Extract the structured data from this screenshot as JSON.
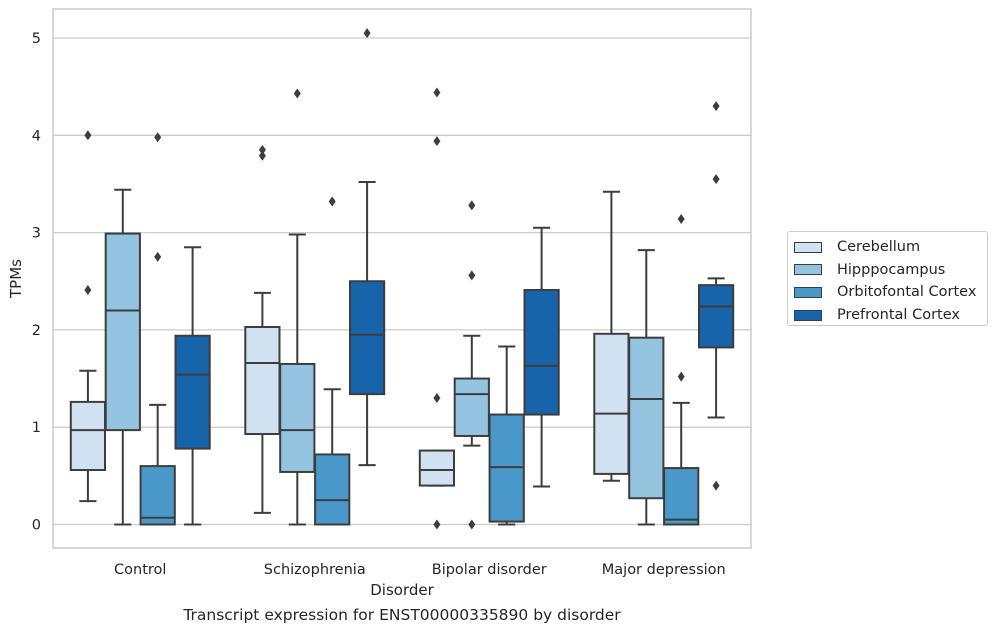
{
  "caption": "Transcript expression for ENST00000335890 by disorder",
  "chart_data": {
    "type": "box",
    "xlabel": "Disorder",
    "ylabel": "TPMs",
    "ylim": [
      -0.25,
      5.3
    ],
    "yticks": [
      0,
      1,
      2,
      3,
      4,
      5
    ],
    "grid": "horizontal",
    "legend_position": "right",
    "categories": [
      "Control",
      "Schizophrenia",
      "Bipolar disorder",
      "Major depression"
    ],
    "series": [
      {
        "name": "Cerebellum",
        "color": "#d0e1f2",
        "boxes": [
          {
            "whislo": 0.24,
            "q1": 0.56,
            "med": 0.97,
            "q3": 1.26,
            "whishi": 1.58,
            "fliers": [
              2.41,
              4.0
            ]
          },
          {
            "whislo": 0.12,
            "q1": 0.93,
            "med": 1.66,
            "q3": 2.03,
            "whishi": 2.38,
            "fliers": [
              3.79,
              3.85
            ]
          },
          {
            "whislo": 0.4,
            "q1": 0.4,
            "med": 0.56,
            "q3": 0.76,
            "whishi": 0.76,
            "fliers": [
              0.0,
              1.3,
              3.94,
              4.44
            ]
          },
          {
            "whislo": 0.45,
            "q1": 0.52,
            "med": 1.14,
            "q3": 1.96,
            "whishi": 3.42,
            "fliers": []
          }
        ]
      },
      {
        "name": "Hipppocampus",
        "color": "#94c4df",
        "boxes": [
          {
            "whislo": 0.0,
            "q1": 0.97,
            "med": 2.2,
            "q3": 2.99,
            "whishi": 3.44,
            "fliers": []
          },
          {
            "whislo": 0.0,
            "q1": 0.54,
            "med": 0.97,
            "q3": 1.65,
            "whishi": 2.98,
            "fliers": [
              4.43
            ]
          },
          {
            "whislo": 0.81,
            "q1": 0.91,
            "med": 1.34,
            "q3": 1.5,
            "whishi": 1.94,
            "fliers": [
              0.0,
              2.56,
              3.28
            ]
          },
          {
            "whislo": 0.0,
            "q1": 0.27,
            "med": 1.29,
            "q3": 1.92,
            "whishi": 2.82,
            "fliers": []
          }
        ]
      },
      {
        "name": "Orbitofontal Cortex",
        "color": "#4a98c9",
        "boxes": [
          {
            "whislo": 0.0,
            "q1": 0.0,
            "med": 0.07,
            "q3": 0.6,
            "whishi": 1.23,
            "fliers": [
              2.75,
              3.98
            ]
          },
          {
            "whislo": 0.0,
            "q1": 0.0,
            "med": 0.25,
            "q3": 0.72,
            "whishi": 1.39,
            "fliers": [
              3.32
            ]
          },
          {
            "whislo": 0.0,
            "q1": 0.03,
            "med": 0.59,
            "q3": 1.13,
            "whishi": 1.83,
            "fliers": []
          },
          {
            "whislo": 0.0,
            "q1": 0.0,
            "med": 0.05,
            "q3": 0.58,
            "whishi": 1.25,
            "fliers": [
              1.52,
              3.14
            ]
          }
        ]
      },
      {
        "name": "Prefrontal Cortex",
        "color": "#1764ab",
        "boxes": [
          {
            "whislo": 0.0,
            "q1": 0.78,
            "med": 1.54,
            "q3": 1.94,
            "whishi": 2.85,
            "fliers": []
          },
          {
            "whislo": 0.61,
            "q1": 1.34,
            "med": 1.95,
            "q3": 2.5,
            "whishi": 3.52,
            "fliers": [
              5.05
            ]
          },
          {
            "whislo": 0.39,
            "q1": 1.13,
            "med": 1.63,
            "q3": 2.41,
            "whishi": 3.05,
            "fliers": []
          },
          {
            "whislo": 1.1,
            "q1": 1.82,
            "med": 2.24,
            "q3": 2.46,
            "whishi": 2.53,
            "fliers": [
              0.4,
              3.55,
              4.3
            ]
          }
        ]
      }
    ]
  }
}
